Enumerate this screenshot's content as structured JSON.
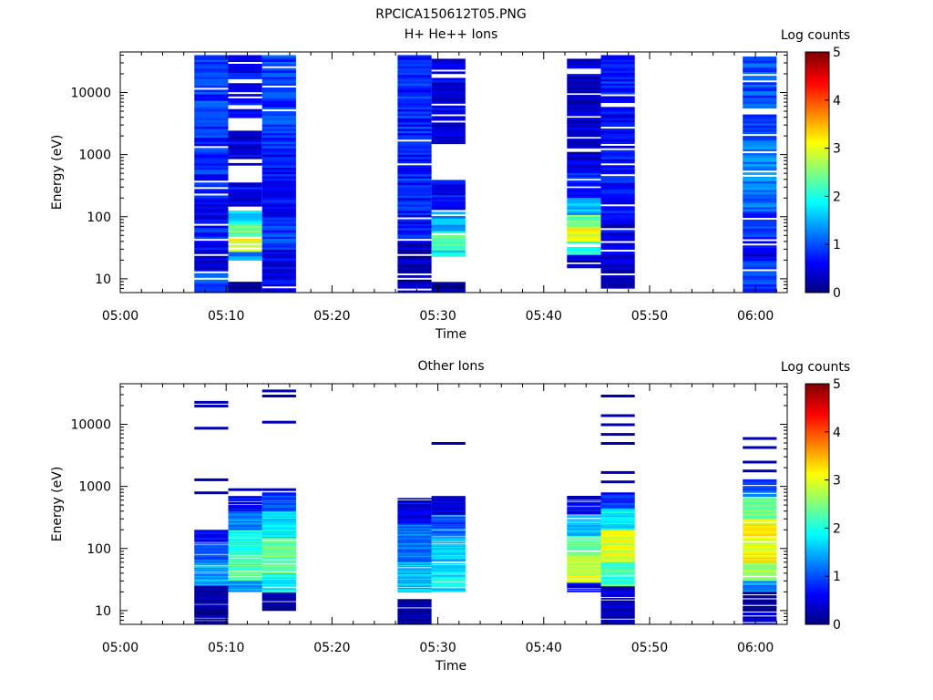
{
  "figure_title": "RPCICA150612T05.PNG",
  "chart_data": [
    {
      "type": "heatmap",
      "title": "H+ He++ Ions",
      "xlabel": "Time",
      "ylabel": "Energy (eV)",
      "x_ticks": [
        "05:00",
        "05:10",
        "05:20",
        "05:30",
        "05:40",
        "05:50",
        "06:00"
      ],
      "x_range_minutes": [
        0,
        63
      ],
      "y_scale": "log",
      "y_ticks": [
        "10",
        "100",
        "1000",
        "10000"
      ],
      "ylim": [
        6,
        45000
      ],
      "colorbar": {
        "label": "Log counts",
        "range": [
          0,
          5
        ],
        "ticks": [
          "0",
          "1",
          "2",
          "3",
          "4",
          "5"
        ]
      },
      "columns": [
        {
          "t_start": 7.0,
          "t_end": 10.2,
          "e_min": 6,
          "e_max": 40000,
          "bands": [
            {
              "e1": 6,
              "e2": 12,
              "v": 1.0
            },
            {
              "e1": 12,
              "e2": 30,
              "v": 0.4
            },
            {
              "e1": 30,
              "e2": 100,
              "v": 0.7
            },
            {
              "e1": 100,
              "e2": 280,
              "v": 0.6
            },
            {
              "e1": 280,
              "e2": 3000,
              "v": 0.8
            },
            {
              "e1": 3000,
              "e2": 40000,
              "v": 0.9
            }
          ]
        },
        {
          "t_start": 10.2,
          "t_end": 13.4,
          "e_min": 6,
          "e_max": 40000,
          "bands": [
            {
              "e1": 6,
              "e2": 10,
              "v": 0.1
            },
            {
              "e1": 20,
              "e2": 28,
              "v": 1.3
            },
            {
              "e1": 28,
              "e2": 45,
              "v": 3.0
            },
            {
              "e1": 45,
              "e2": 80,
              "v": 2.4
            },
            {
              "e1": 80,
              "e2": 130,
              "v": 1.7
            },
            {
              "e1": 150,
              "e2": 400,
              "v": 0.6
            },
            {
              "e1": 700,
              "e2": 2500,
              "v": 0.5
            },
            {
              "e1": 4000,
              "e2": 40000,
              "v": 0.6
            }
          ]
        },
        {
          "t_start": 13.4,
          "t_end": 16.6,
          "e_min": 6,
          "e_max": 40000,
          "bands": [
            {
              "e1": 6,
              "e2": 30,
              "v": 0.5
            },
            {
              "e1": 30,
              "e2": 100,
              "v": 0.9
            },
            {
              "e1": 100,
              "e2": 1000,
              "v": 0.7
            },
            {
              "e1": 1000,
              "e2": 40000,
              "v": 0.9
            }
          ]
        },
        {
          "t_start": 26.2,
          "t_end": 29.4,
          "e_min": 6,
          "e_max": 40000,
          "bands": [
            {
              "e1": 6,
              "e2": 40,
              "v": 0.3
            },
            {
              "e1": 45,
              "e2": 300,
              "v": 0.7
            },
            {
              "e1": 300,
              "e2": 40000,
              "v": 0.8
            }
          ]
        },
        {
          "t_start": 29.4,
          "t_end": 32.6,
          "e_min": 6,
          "e_max": 35000,
          "bands": [
            {
              "e1": 6,
              "e2": 9,
              "v": 0.1
            },
            {
              "e1": 22,
              "e2": 30,
              "v": 1.8
            },
            {
              "e1": 30,
              "e2": 60,
              "v": 2.3
            },
            {
              "e1": 60,
              "e2": 120,
              "v": 1.4
            },
            {
              "e1": 120,
              "e2": 400,
              "v": 0.6
            },
            {
              "e1": 1500,
              "e2": 35000,
              "v": 0.5
            }
          ]
        },
        {
          "t_start": 42.2,
          "t_end": 45.4,
          "e_min": 15,
          "e_max": 35000,
          "bands": [
            {
              "e1": 15,
              "e2": 25,
              "v": 0.4
            },
            {
              "e1": 25,
              "e2": 40,
              "v": 2.0
            },
            {
              "e1": 40,
              "e2": 70,
              "v": 3.0
            },
            {
              "e1": 70,
              "e2": 110,
              "v": 2.4
            },
            {
              "e1": 110,
              "e2": 200,
              "v": 1.5
            },
            {
              "e1": 200,
              "e2": 500,
              "v": 0.8
            },
            {
              "e1": 500,
              "e2": 35000,
              "v": 0.4
            }
          ]
        },
        {
          "t_start": 45.4,
          "t_end": 48.6,
          "e_min": 6,
          "e_max": 40000,
          "bands": [
            {
              "e1": 6,
              "e2": 15,
              "v": 0.2
            },
            {
              "e1": 15,
              "e2": 120,
              "v": 0.5
            },
            {
              "e1": 120,
              "e2": 40000,
              "v": 0.7
            }
          ]
        },
        {
          "t_start": 58.8,
          "t_end": 62.0,
          "e_min": 6,
          "e_max": 38000,
          "bands": [
            {
              "e1": 6,
              "e2": 20,
              "v": 1.0
            },
            {
              "e1": 20,
              "e2": 40,
              "v": 0.5
            },
            {
              "e1": 40,
              "e2": 120,
              "v": 0.8
            },
            {
              "e1": 120,
              "e2": 1500,
              "v": 1.2
            },
            {
              "e1": 1500,
              "e2": 38000,
              "v": 1.0
            }
          ]
        }
      ]
    },
    {
      "type": "heatmap",
      "title": "Other Ions",
      "xlabel": "Time",
      "ylabel": "Energy (eV)",
      "x_ticks": [
        "05:00",
        "05:10",
        "05:20",
        "05:30",
        "05:40",
        "05:50",
        "06:00"
      ],
      "x_range_minutes": [
        0,
        63
      ],
      "y_scale": "log",
      "y_ticks": [
        "10",
        "100",
        "1000",
        "10000"
      ],
      "ylim": [
        6,
        45000
      ],
      "colorbar": {
        "label": "Log counts",
        "range": [
          0,
          5
        ],
        "ticks": [
          "0",
          "1",
          "2",
          "3",
          "4",
          "5"
        ]
      },
      "columns": [
        {
          "t_start": 7.0,
          "t_end": 10.2,
          "e_min": 6,
          "e_max": 200,
          "bands": [
            {
              "e1": 6,
              "e2": 25,
              "v": 0.2
            },
            {
              "e1": 25,
              "e2": 60,
              "v": 1.4
            },
            {
              "e1": 60,
              "e2": 120,
              "v": 1.1
            },
            {
              "e1": 120,
              "e2": 200,
              "v": 0.7
            }
          ]
        },
        {
          "t_start": 10.2,
          "t_end": 13.4,
          "e_min": 20,
          "e_max": 700,
          "bands": [
            {
              "e1": 20,
              "e2": 30,
              "v": 1.4
            },
            {
              "e1": 30,
              "e2": 80,
              "v": 2.3
            },
            {
              "e1": 80,
              "e2": 200,
              "v": 2.0
            },
            {
              "e1": 200,
              "e2": 400,
              "v": 1.3
            },
            {
              "e1": 400,
              "e2": 700,
              "v": 0.6
            }
          ]
        },
        {
          "t_start": 13.4,
          "t_end": 16.6,
          "e_min": 10,
          "e_max": 800,
          "bands": [
            {
              "e1": 10,
              "e2": 20,
              "v": 0.2
            },
            {
              "e1": 20,
              "e2": 40,
              "v": 1.9
            },
            {
              "e1": 40,
              "e2": 150,
              "v": 2.4
            },
            {
              "e1": 150,
              "e2": 400,
              "v": 1.8
            },
            {
              "e1": 400,
              "e2": 800,
              "v": 1.0
            }
          ]
        },
        {
          "t_start": 26.2,
          "t_end": 29.4,
          "e_min": 6,
          "e_max": 650,
          "bands": [
            {
              "e1": 6,
              "e2": 15,
              "v": 0.1
            },
            {
              "e1": 20,
              "e2": 60,
              "v": 1.5
            },
            {
              "e1": 60,
              "e2": 250,
              "v": 1.1
            },
            {
              "e1": 250,
              "e2": 650,
              "v": 0.5
            }
          ]
        },
        {
          "t_start": 29.4,
          "t_end": 32.6,
          "e_min": 20,
          "e_max": 700,
          "bands": [
            {
              "e1": 20,
              "e2": 50,
              "v": 1.8
            },
            {
              "e1": 50,
              "e2": 150,
              "v": 1.6
            },
            {
              "e1": 150,
              "e2": 350,
              "v": 1.0
            },
            {
              "e1": 350,
              "e2": 700,
              "v": 0.4
            }
          ]
        },
        {
          "t_start": 42.2,
          "t_end": 45.4,
          "e_min": 20,
          "e_max": 650,
          "bands": [
            {
              "e1": 20,
              "e2": 28,
              "v": 0.6
            },
            {
              "e1": 28,
              "e2": 80,
              "v": 2.9
            },
            {
              "e1": 80,
              "e2": 160,
              "v": 2.3
            },
            {
              "e1": 160,
              "e2": 350,
              "v": 1.5
            },
            {
              "e1": 350,
              "e2": 650,
              "v": 0.6
            }
          ]
        },
        {
          "t_start": 45.4,
          "t_end": 48.6,
          "e_min": 6,
          "e_max": 800,
          "bands": [
            {
              "e1": 6,
              "e2": 25,
              "v": 0.3
            },
            {
              "e1": 25,
              "e2": 60,
              "v": 2.2
            },
            {
              "e1": 60,
              "e2": 200,
              "v": 3.0
            },
            {
              "e1": 200,
              "e2": 450,
              "v": 1.8
            },
            {
              "e1": 450,
              "e2": 800,
              "v": 0.8
            }
          ]
        },
        {
          "t_start": 58.8,
          "t_end": 62.0,
          "e_min": 6,
          "e_max": 1300,
          "bands": [
            {
              "e1": 6,
              "e2": 20,
              "v": 0.2
            },
            {
              "e1": 20,
              "e2": 30,
              "v": 1.3
            },
            {
              "e1": 30,
              "e2": 60,
              "v": 2.7
            },
            {
              "e1": 60,
              "e2": 300,
              "v": 3.1
            },
            {
              "e1": 300,
              "e2": 700,
              "v": 2.5
            },
            {
              "e1": 700,
              "e2": 1300,
              "v": 1.0
            }
          ]
        }
      ],
      "isolated_lines": [
        {
          "t_start": 7.0,
          "t_end": 10.2,
          "energies": [
            800,
            1300,
            8800,
            20000,
            23000
          ]
        },
        {
          "t_start": 10.2,
          "t_end": 13.4,
          "energies": [
            900
          ]
        },
        {
          "t_start": 13.4,
          "t_end": 16.6,
          "energies": [
            900,
            11000,
            29000,
            35000
          ]
        },
        {
          "t_start": 29.4,
          "t_end": 32.6,
          "energies": [
            5000
          ]
        },
        {
          "t_start": 42.2,
          "t_end": 45.4,
          "energies": [
            680
          ]
        },
        {
          "t_start": 45.4,
          "t_end": 48.6,
          "energies": [
            1200,
            1700,
            5000,
            7000,
            10000,
            14000,
            29000
          ]
        },
        {
          "t_start": 58.8,
          "t_end": 62.0,
          "energies": [
            1800,
            2500,
            4300,
            6000
          ]
        }
      ]
    }
  ]
}
